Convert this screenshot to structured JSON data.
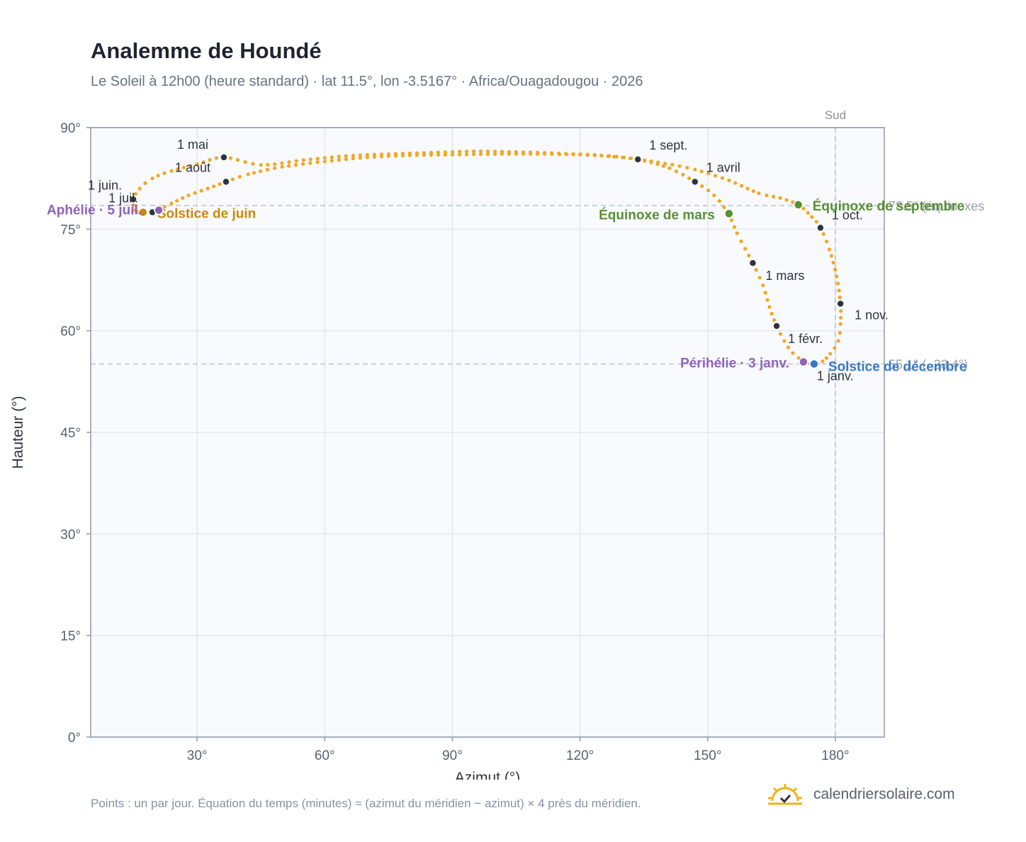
{
  "header": {
    "title": "Analemme de Houndé",
    "subtitle": "Le Soleil à 12h00 (heure standard) · lat 11.5°, lon -3.5167° · Africa/Ouagadougou · 2026"
  },
  "footer": {
    "note": "Points : un par jour. Équation du temps (minutes) ≈ (azimut du méridien − azimut) × 4 près du méridien.",
    "brand": "calendriersolaire.com",
    "brand_icon": "sun-check-icon"
  },
  "colors": {
    "curve": "#f5a623",
    "month_dot": "#2d3340",
    "solstice_june": "#c98a0e",
    "solstice_december": "#3a78c3",
    "equinox": "#5a8f36",
    "apsis": "#8e63b8",
    "grid": "#e3e7ee",
    "plot_bg": "#f8fafd",
    "axis_frame": "#8f99a8"
  },
  "chart_data": {
    "type": "scatter",
    "xlabel": "Azimut (°)",
    "ylabel": "Hauteur (°)",
    "xlim": [
      5,
      191.5
    ],
    "ylim": [
      0,
      90
    ],
    "x_ticks": [
      30,
      60,
      90,
      120,
      150,
      180
    ],
    "x_tick_labels": [
      "30°",
      "60°",
      "90°",
      "120°",
      "150°",
      "180°"
    ],
    "y_ticks": [
      0,
      15,
      30,
      45,
      60,
      75,
      90
    ],
    "y_tick_labels": [
      "0°",
      "15°",
      "30°",
      "45°",
      "60°",
      "75°",
      "90°"
    ],
    "grid": true,
    "south_line": {
      "x": 180,
      "label": "Sud"
    },
    "reference_lines": [
      {
        "y": 78.5,
        "label": "78.5° (équinoxes"
      },
      {
        "y": 55.1,
        "label": "55.1° (−23.4°)"
      }
    ],
    "curve_series": {
      "name": "",
      "points": [
        [
          175.0,
          55.0
        ],
        [
          172.8,
          55.4
        ],
        [
          170.0,
          56.7
        ],
        [
          168.0,
          58.5
        ],
        [
          166.2,
          60.7
        ],
        [
          164.5,
          63.5
        ],
        [
          163.0,
          66.7
        ],
        [
          160.6,
          70.0
        ],
        [
          158.8,
          72.1
        ],
        [
          156.9,
          74.4
        ],
        [
          154.8,
          77.3
        ],
        [
          151.5,
          80.0
        ],
        [
          147.0,
          82.0
        ],
        [
          141.0,
          84.0
        ],
        [
          133.6,
          85.3
        ],
        [
          125.0,
          85.9
        ],
        [
          115.0,
          86.2
        ],
        [
          105.0,
          86.4
        ],
        [
          95.0,
          86.5
        ],
        [
          85.0,
          86.3
        ],
        [
          75.0,
          86.1
        ],
        [
          65.0,
          85.8
        ],
        [
          55.0,
          85.2
        ],
        [
          45.0,
          84.5
        ],
        [
          36.3,
          85.6
        ],
        [
          30.0,
          84.6
        ],
        [
          24.0,
          83.6
        ],
        [
          19.5,
          82.5
        ],
        [
          16.5,
          81.0
        ],
        [
          15.0,
          79.4
        ],
        [
          15.5,
          77.8
        ],
        [
          17.0,
          77.5
        ],
        [
          19.0,
          77.5
        ],
        [
          21.0,
          77.9
        ],
        [
          24.0,
          78.8
        ],
        [
          28.0,
          80.0
        ],
        [
          32.5,
          81.0
        ],
        [
          36.8,
          82.0
        ],
        [
          42.0,
          83.1
        ],
        [
          50.0,
          84.2
        ],
        [
          60.0,
          85.0
        ],
        [
          70.0,
          85.6
        ],
        [
          80.0,
          85.9
        ],
        [
          90.0,
          86.0
        ],
        [
          100.0,
          86.1
        ],
        [
          110.0,
          86.1
        ],
        [
          120.0,
          86.0
        ],
        [
          128.0,
          85.7
        ],
        [
          133.6,
          85.3
        ],
        [
          140.0,
          84.7
        ],
        [
          147.0,
          83.8
        ],
        [
          155.0,
          82.2
        ],
        [
          162.0,
          80.3
        ],
        [
          167.0,
          79.6
        ],
        [
          171.3,
          78.6
        ],
        [
          174.5,
          76.8
        ],
        [
          176.5,
          75.2
        ],
        [
          178.6,
          72.0
        ],
        [
          180.3,
          68.0
        ],
        [
          181.2,
          64.0
        ],
        [
          181.2,
          61.0
        ],
        [
          180.7,
          58.5
        ],
        [
          178.8,
          56.6
        ],
        [
          177.0,
          55.5
        ],
        [
          175.0,
          55.0
        ]
      ]
    },
    "month_markers": [
      {
        "label": "1 janv.",
        "x": 175.0,
        "y": 55.0,
        "dx": 4,
        "dy": 22
      },
      {
        "label": "1 févr.",
        "x": 166.2,
        "y": 60.7,
        "dx": 16,
        "dy": 24
      },
      {
        "label": "1 mars",
        "x": 160.6,
        "y": 70.0,
        "dx": 18,
        "dy": 24
      },
      {
        "label": "1 avril",
        "x": 147.0,
        "y": 82.0,
        "dx": 16,
        "dy": -14
      },
      {
        "label": "1 mai",
        "x": 36.3,
        "y": 85.6,
        "dx": -66,
        "dy": -12
      },
      {
        "label": "1 juin.",
        "x": 15.0,
        "y": 79.4,
        "dx": -64,
        "dy": -14
      },
      {
        "label": "1 juil.",
        "x": 19.5,
        "y": 77.5,
        "dx": -62,
        "dy": -14
      },
      {
        "label": "1 août",
        "x": 36.8,
        "y": 82.0,
        "dx": -72,
        "dy": -14
      },
      {
        "label": "1 sept.",
        "x": 133.6,
        "y": 85.3,
        "dx": 16,
        "dy": -14
      },
      {
        "label": "1 oct.",
        "x": 176.5,
        "y": 75.2,
        "dx": 16,
        "dy": -12
      },
      {
        "label": "1 nov.",
        "x": 181.2,
        "y": 64.0,
        "dx": 20,
        "dy": 22
      }
    ],
    "key_points": [
      {
        "label": "Solstice de juin",
        "x": 17.3,
        "y": 77.5,
        "color": "#c98a0e",
        "dx": 20,
        "dy": 8,
        "anchor": "start"
      },
      {
        "label": "Aphélie · 5 juil.",
        "x": 21.0,
        "y": 77.8,
        "color": "#8e63b8",
        "dx": -24,
        "dy": 6,
        "anchor": "end"
      },
      {
        "label": "Équinoxe de mars",
        "x": 155.0,
        "y": 77.3,
        "color": "#5a8f36",
        "dx": -20,
        "dy": 8,
        "anchor": "end"
      },
      {
        "label": "Équinoxe de septembre",
        "x": 171.3,
        "y": 78.6,
        "color": "#5a8f36",
        "dx": 20,
        "dy": 8,
        "anchor": "start"
      },
      {
        "label": "Périhélie · 3 janv.",
        "x": 172.5,
        "y": 55.4,
        "color": "#8e63b8",
        "dx": -20,
        "dy": 8,
        "anchor": "end"
      },
      {
        "label": "Solstice de décembre",
        "x": 175.0,
        "y": 55.1,
        "color": "#3a78c3",
        "dx": 20,
        "dy": 10,
        "anchor": "start"
      }
    ]
  }
}
